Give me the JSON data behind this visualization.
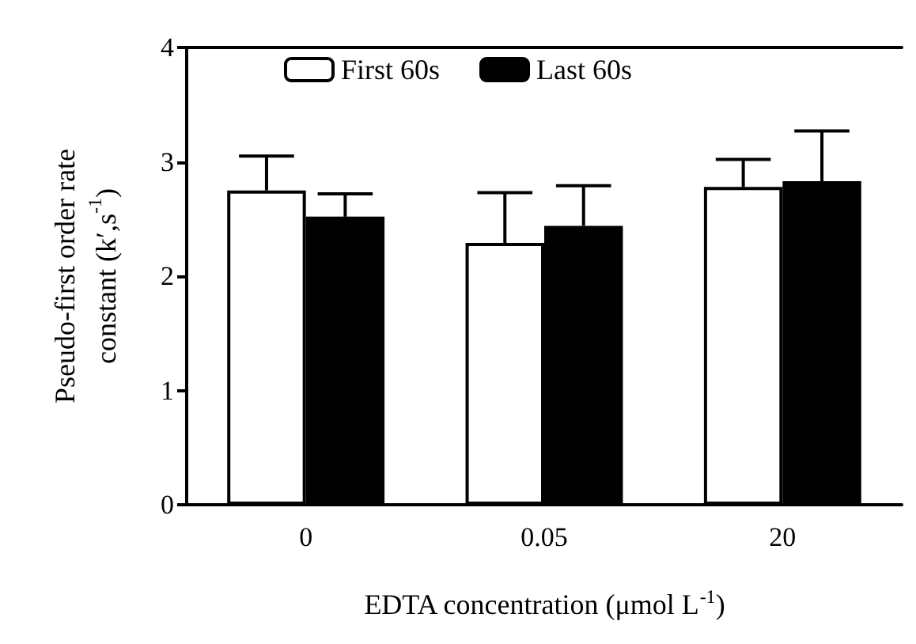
{
  "chart_data": {
    "type": "bar",
    "xlabel": "EDTA concentration (μmol L$^{-1}$)",
    "ylabel": "Pseudo-first order rate constant (k′,s$^{-1}$)",
    "categories": [
      "0",
      "0.05",
      "20"
    ],
    "series": [
      {
        "name": "First 60s",
        "color": "#ffffff",
        "values": [
          2.75,
          2.29,
          2.78
        ],
        "errors": [
          [
            2.75,
            3.05
          ],
          [
            2.29,
            2.73
          ],
          [
            2.78,
            3.02
          ]
        ]
      },
      {
        "name": "Last 60s",
        "color": "#000000",
        "values": [
          2.52,
          2.44,
          2.83
        ],
        "errors": [
          [
            2.52,
            2.72
          ],
          [
            2.44,
            2.79
          ],
          [
            2.83,
            3.27
          ]
        ]
      }
    ],
    "ylim": [
      0,
      4
    ],
    "yticks": [
      0,
      1,
      2,
      3,
      4
    ],
    "grid": false,
    "legend": "top"
  }
}
